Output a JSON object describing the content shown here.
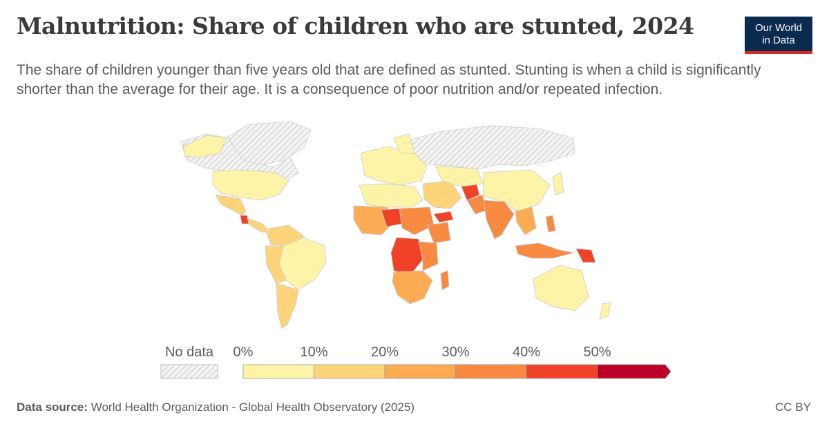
{
  "header": {
    "title": "Malnutrition: Share of children who are stunted, 2024",
    "subtitle": "The share of children younger than five years old that are defined as stunted. Stunting is when a child is significantly shorter than the average for their age. It is a consequence of poor nutrition and/or repeated infection."
  },
  "logo": {
    "line1": "Our World",
    "line2": "in Data"
  },
  "legend": {
    "no_data_label": "No data",
    "ticks": [
      "0%",
      "10%",
      "20%",
      "30%",
      "40%",
      "50%"
    ],
    "bins": [
      {
        "range": "0-10%",
        "color": "#fef4a8"
      },
      {
        "range": "10-20%",
        "color": "#fdd47a"
      },
      {
        "range": "20-30%",
        "color": "#fcab52"
      },
      {
        "range": "30-40%",
        "color": "#f98a42"
      },
      {
        "range": "40-50%",
        "color": "#ef4226"
      },
      {
        "range": ">50%",
        "color": "#bd0026"
      }
    ],
    "no_data_color": "hatched-gray"
  },
  "footer": {
    "source_label": "Data source:",
    "source_text": "World Health Organization - Global Health Observatory (2025)",
    "license": "CC BY"
  }
}
